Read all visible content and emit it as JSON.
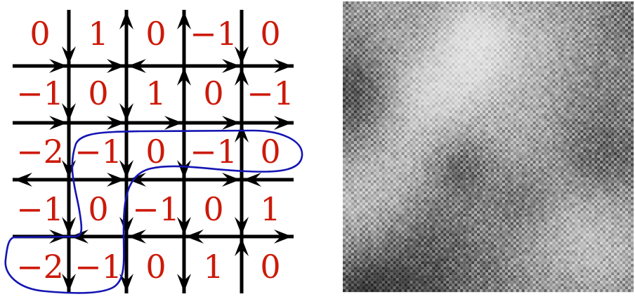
{
  "left_panel": {
    "height_labels": [
      [
        "0",
        "1",
        "0",
        "−1",
        "0"
      ],
      [
        "−1",
        "0",
        "1",
        "0",
        "−1"
      ],
      [
        "−2",
        "−1",
        "0",
        "−1",
        "0"
      ],
      [
        "−1",
        "0",
        "−1",
        "0",
        "1"
      ],
      [
        "−2",
        "−1",
        "0",
        "1",
        "0"
      ]
    ],
    "colors": {
      "labels": "#cc1a0a",
      "arrows": "#000000",
      "contour": "#1414b4"
    }
  },
  "right_panel": {
    "colors": {
      "dark": "#000000",
      "light": "#ffffff"
    }
  }
}
